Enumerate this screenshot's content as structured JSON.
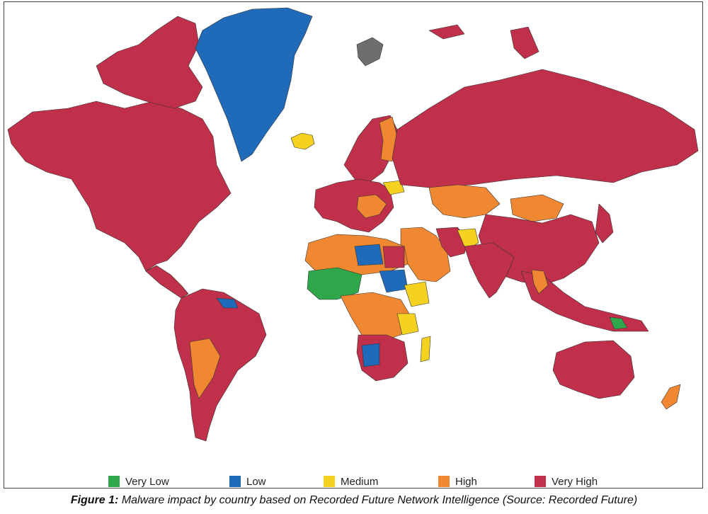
{
  "figure": {
    "caption_lead": "Figure 1:",
    "caption_text": " Malware impact by country based on Recorded Future Network Intelligence (Source: Recorded Future)"
  },
  "legend": {
    "items": [
      {
        "label": "Very Low",
        "color": "#2ea84a"
      },
      {
        "label": "Low",
        "color": "#1f6ab9"
      },
      {
        "label": "Medium",
        "color": "#f5d21f"
      },
      {
        "label": "High",
        "color": "#ef8830"
      },
      {
        "label": "Very High",
        "color": "#c0304a"
      }
    ]
  },
  "colors": {
    "no_data": "#6e6e6e",
    "border": "#333333",
    "background": "#ffffff"
  }
}
